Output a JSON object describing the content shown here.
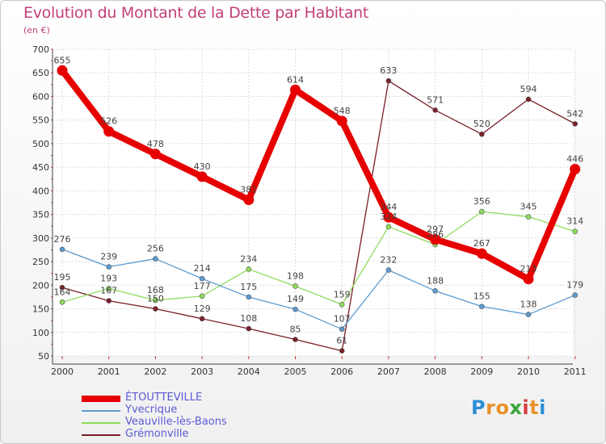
{
  "chart_data": {
    "type": "line",
    "title": "Evolution du Montant de la Dette par Habitant",
    "subtitle": "(en €)",
    "x": [
      "2000",
      "2001",
      "2002",
      "2003",
      "2004",
      "2005",
      "2006",
      "2007",
      "2008",
      "2009",
      "2010",
      "2011"
    ],
    "y_ticks": [
      "50",
      "100",
      "150",
      "200",
      "250",
      "300",
      "350",
      "400",
      "450",
      "500",
      "550",
      "600",
      "650",
      "700"
    ],
    "ylim": [
      50,
      700
    ],
    "grid": true,
    "legend_position": "bottom-left",
    "series": [
      {
        "name": "ÉTOUTTEVILLE",
        "color": "#e60000",
        "values": [
          655,
          526,
          478,
          430,
          381,
          614,
          548,
          344,
          297,
          267,
          213,
          446
        ],
        "labels": [
          "655",
          "526",
          "478",
          "430",
          "381",
          "614",
          "548",
          "344",
          "297",
          "267",
          "213",
          "446"
        ]
      },
      {
        "name": "Yvecrique",
        "color": "#5c9bd1",
        "values": [
          276,
          239,
          256,
          214,
          175,
          149,
          107,
          232,
          188,
          155,
          138,
          179
        ],
        "labels": [
          "276",
          "239",
          "256",
          "214",
          "175",
          "149",
          "107",
          "232",
          "188",
          "155",
          "138",
          "179"
        ]
      },
      {
        "name": "Veauville-lès-Baons",
        "color": "#8ddc5a",
        "values": [
          164,
          193,
          168,
          177,
          234,
          198,
          159,
          324,
          286,
          356,
          345,
          314
        ],
        "labels": [
          "164",
          "193",
          "168",
          "177",
          "234",
          "198",
          "159",
          "324",
          "286",
          "356",
          "345",
          "314"
        ]
      },
      {
        "name": "Grémonville",
        "color": "#7a1f28",
        "values": [
          195,
          167,
          150,
          129,
          108,
          85,
          61,
          633,
          571,
          520,
          594,
          542
        ],
        "labels": [
          "195",
          "167",
          "150",
          "129",
          "108",
          "85",
          "61",
          "633",
          "571",
          "520",
          "594",
          "542"
        ]
      }
    ]
  },
  "logo": {
    "letters": [
      "P",
      "r",
      "o",
      "x",
      "i",
      "t",
      "i"
    ],
    "colors": [
      "#2c8fd6",
      "#e8912c",
      "#e8912c",
      "#3aa63a",
      "#d63c3c",
      "#e8912c",
      "#2c8fd6"
    ]
  }
}
